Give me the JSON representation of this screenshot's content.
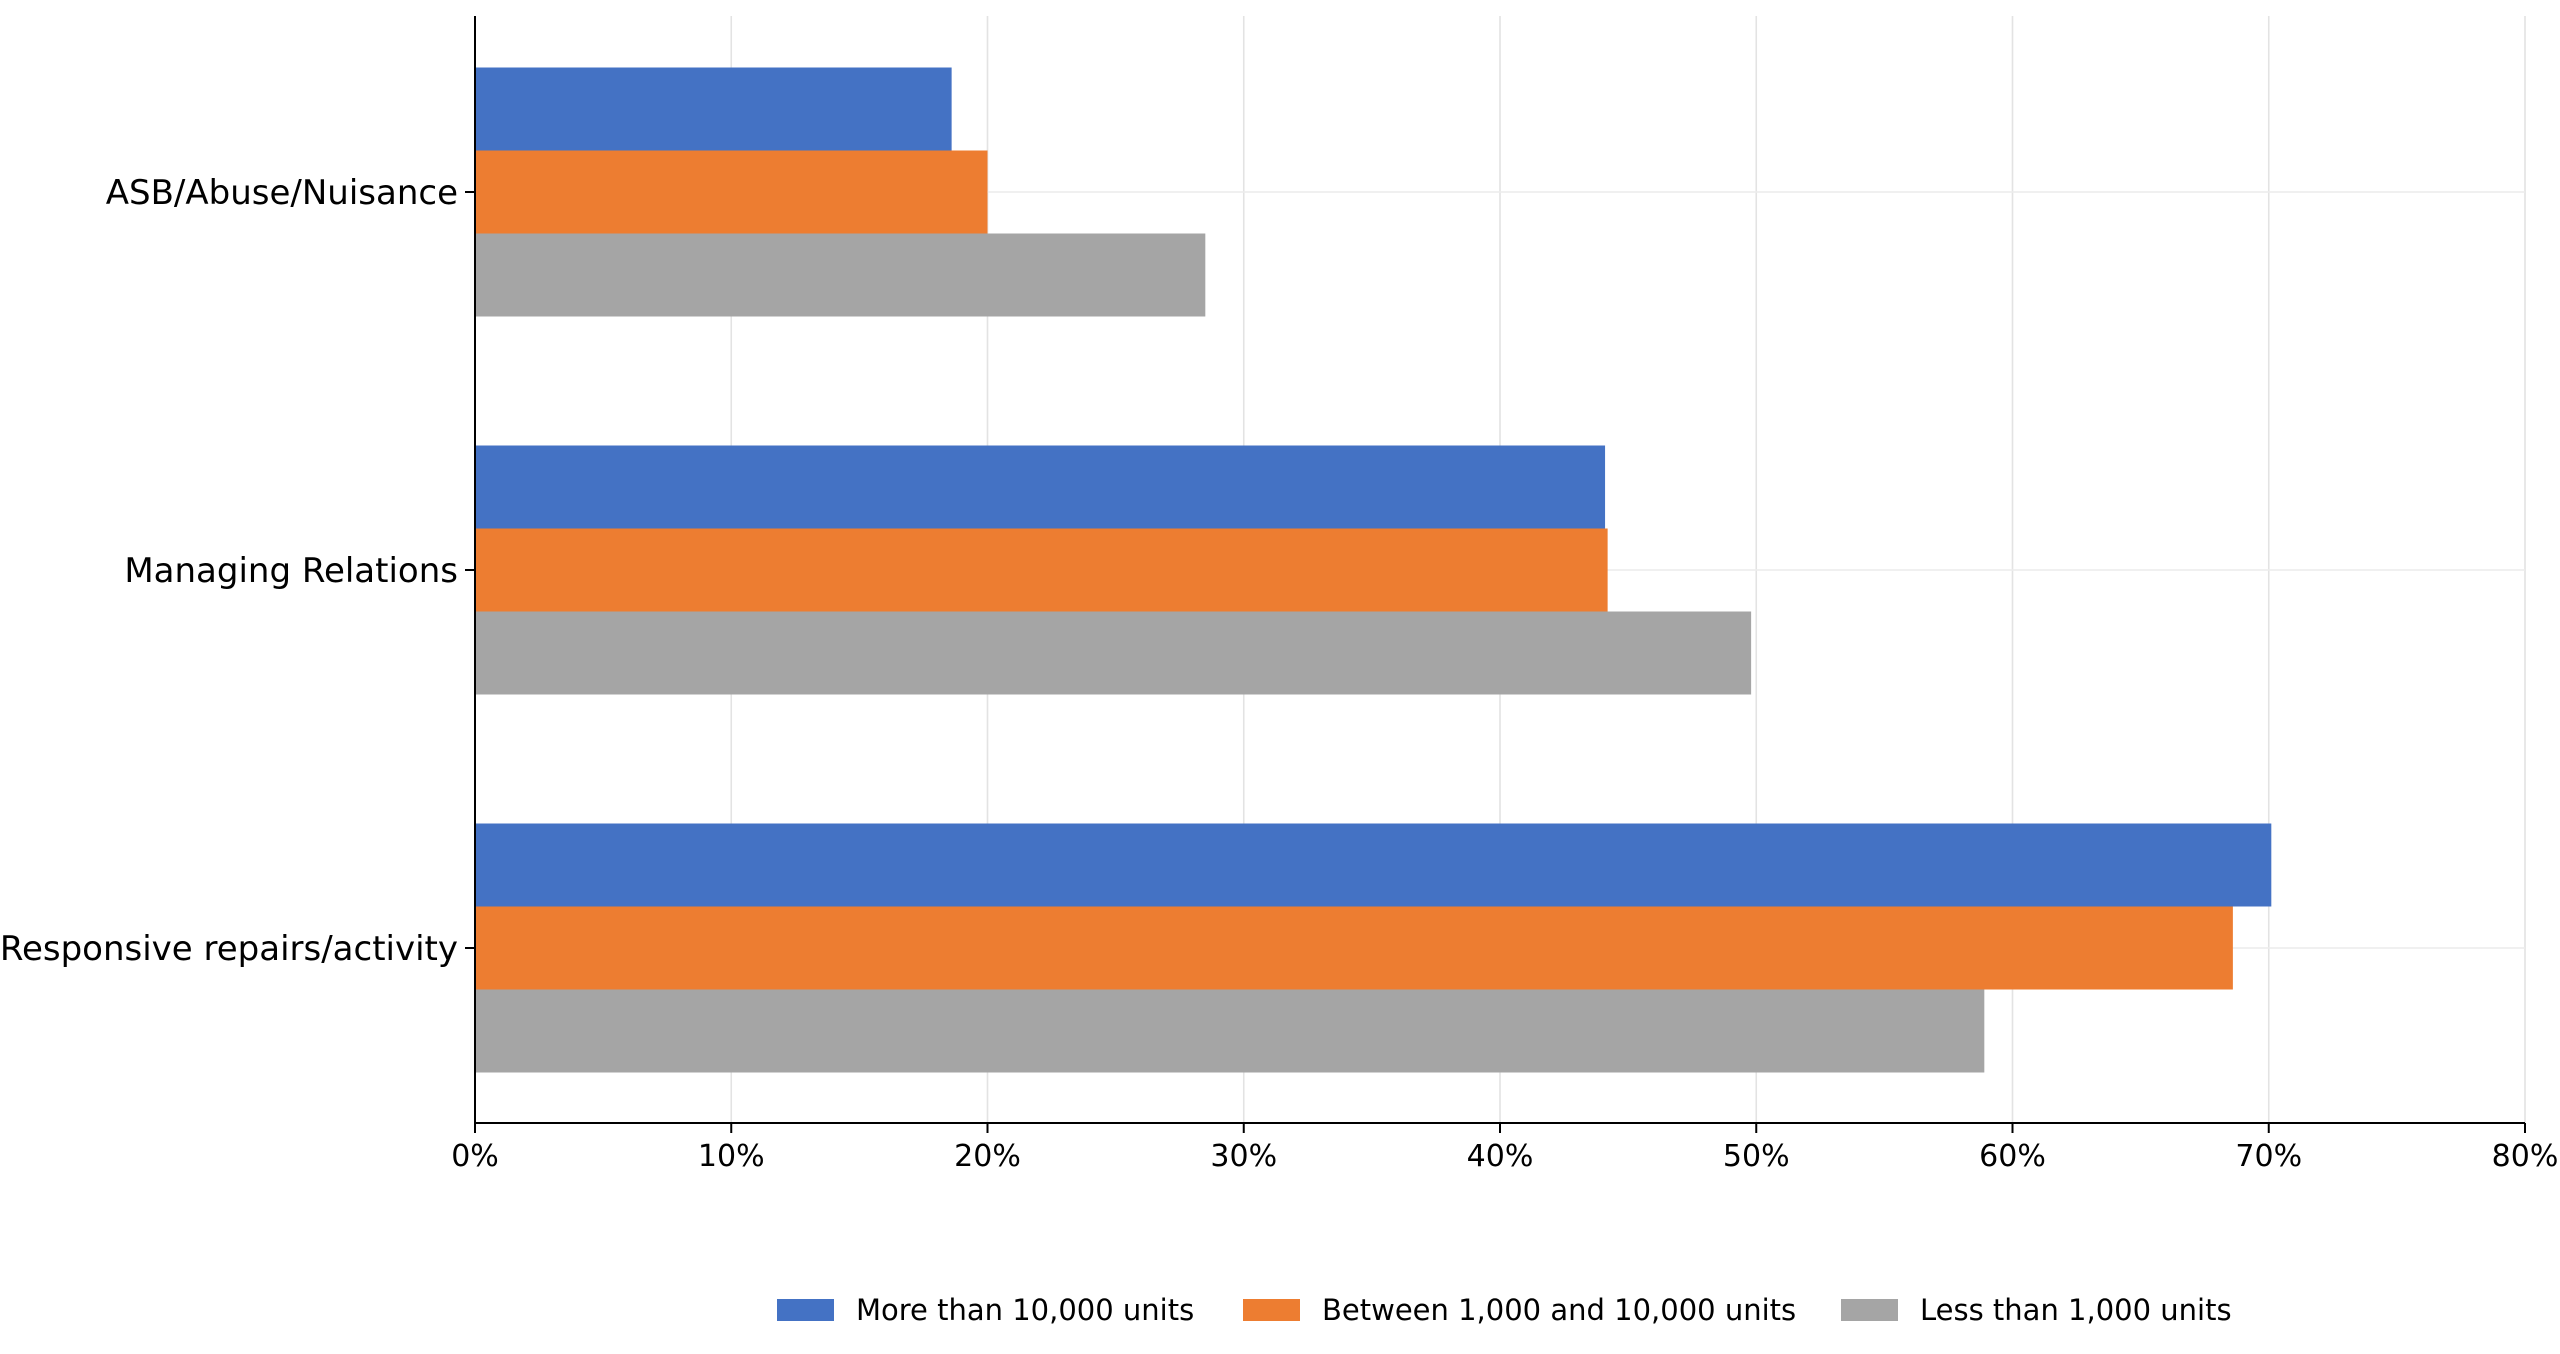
{
  "chart_data": {
    "type": "bar",
    "orientation": "horizontal",
    "title": "",
    "xlabel": "",
    "ylabel": "",
    "categories": [
      "ASB/Abuse/Nuisance",
      "Managing Relations",
      "Responsive repairs/activity"
    ],
    "series": [
      {
        "name": "More than 10,000 units",
        "color": "#4472C4",
        "values": [
          0.186,
          0.441,
          0.701
        ]
      },
      {
        "name": "Between 1,000 and 10,000 units",
        "color": "#ED7D31",
        "values": [
          0.2,
          0.442,
          0.686
        ]
      },
      {
        "name": "Less than 1,000 units",
        "color": "#A5A5A5",
        "values": [
          0.285,
          0.498,
          0.589
        ]
      }
    ],
    "xlim": [
      0,
      0.8
    ],
    "x_ticks": [
      0,
      0.1,
      0.2,
      0.3,
      0.4,
      0.5,
      0.6,
      0.7,
      0.8
    ],
    "x_tick_labels": [
      "0%",
      "10%",
      "20%",
      "30%",
      "40%",
      "50%",
      "60%",
      "70%",
      "80%"
    ],
    "grid": true,
    "legend_position": "bottom"
  }
}
